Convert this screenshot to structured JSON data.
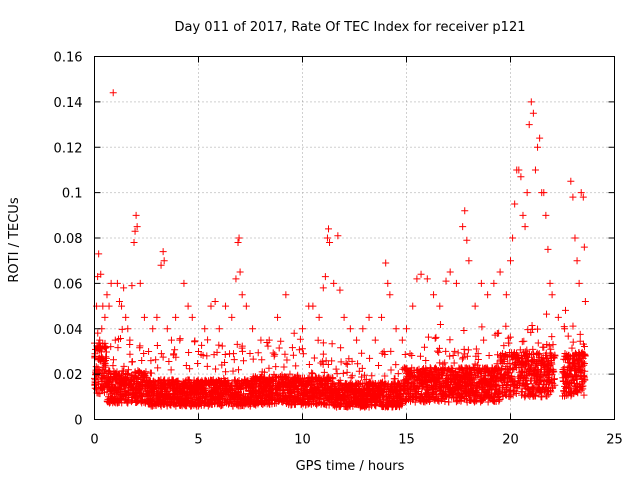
{
  "chart_data": {
    "type": "scatter",
    "title": "Day 011 of 2017, Rate Of TEC Index for receiver p121",
    "xlabel": "GPS time / hours",
    "ylabel": "ROTI / TECUs",
    "xlim": [
      0,
      25
    ],
    "ylim": [
      0,
      0.16
    ],
    "xticks": [
      "0",
      "5",
      "10",
      "15",
      "20",
      "25"
    ],
    "yticks": [
      "0",
      "0.02",
      "0.04",
      "0.06",
      "0.08",
      "0.1",
      "0.12",
      "0.14",
      "0.16"
    ],
    "xtick_values": [
      0,
      5,
      10,
      15,
      20,
      25
    ],
    "ytick_values": [
      0,
      0.02,
      0.04,
      0.06,
      0.08,
      0.1,
      0.12,
      0.14,
      0.16
    ],
    "grid": true,
    "marker": "+",
    "color": "#ff0000",
    "series": [
      {
        "values_note_free": true,
        "points": [
          [
            0.05,
            0.02
          ],
          [
            0.1,
            0.05
          ],
          [
            0.15,
            0.063
          ],
          [
            0.2,
            0.073
          ],
          [
            0.25,
            0.035
          ],
          [
            0.3,
            0.064
          ],
          [
            0.35,
            0.04
          ],
          [
            0.4,
            0.05
          ],
          [
            0.5,
            0.045
          ],
          [
            0.6,
            0.055
          ],
          [
            0.7,
            0.05
          ],
          [
            0.8,
            0.06
          ],
          [
            0.9,
            0.144
          ],
          [
            1.0,
            0.035
          ],
          [
            1.1,
            0.06
          ],
          [
            1.2,
            0.052
          ],
          [
            1.3,
            0.05
          ],
          [
            1.4,
            0.058
          ],
          [
            1.5,
            0.045
          ],
          [
            1.6,
            0.04
          ],
          [
            1.7,
            0.035
          ],
          [
            1.8,
            0.059
          ],
          [
            1.9,
            0.078
          ],
          [
            1.95,
            0.083
          ],
          [
            2.0,
            0.09
          ],
          [
            2.05,
            0.085
          ],
          [
            2.2,
            0.06
          ],
          [
            2.4,
            0.045
          ],
          [
            2.6,
            0.03
          ],
          [
            2.8,
            0.04
          ],
          [
            3.0,
            0.045
          ],
          [
            3.2,
            0.068
          ],
          [
            3.3,
            0.074
          ],
          [
            3.35,
            0.07
          ],
          [
            3.5,
            0.04
          ],
          [
            3.7,
            0.035
          ],
          [
            3.9,
            0.045
          ],
          [
            4.1,
            0.035
          ],
          [
            4.3,
            0.06
          ],
          [
            4.5,
            0.05
          ],
          [
            4.7,
            0.045
          ],
          [
            5.0,
            0.03
          ],
          [
            5.3,
            0.04
          ],
          [
            5.6,
            0.05
          ],
          [
            5.8,
            0.052
          ],
          [
            6.0,
            0.04
          ],
          [
            6.3,
            0.05
          ],
          [
            6.6,
            0.045
          ],
          [
            6.8,
            0.062
          ],
          [
            6.9,
            0.078
          ],
          [
            6.95,
            0.08
          ],
          [
            7.0,
            0.065
          ],
          [
            7.1,
            0.055
          ],
          [
            7.3,
            0.05
          ],
          [
            7.6,
            0.04
          ],
          [
            8.0,
            0.035
          ],
          [
            8.4,
            0.035
          ],
          [
            8.8,
            0.045
          ],
          [
            9.2,
            0.055
          ],
          [
            9.6,
            0.038
          ],
          [
            10.0,
            0.04
          ],
          [
            10.3,
            0.05
          ],
          [
            10.5,
            0.05
          ],
          [
            10.8,
            0.045
          ],
          [
            11.0,
            0.058
          ],
          [
            11.1,
            0.063
          ],
          [
            11.2,
            0.08
          ],
          [
            11.25,
            0.084
          ],
          [
            11.3,
            0.078
          ],
          [
            11.5,
            0.06
          ],
          [
            11.7,
            0.081
          ],
          [
            11.8,
            0.057
          ],
          [
            12.0,
            0.045
          ],
          [
            12.3,
            0.04
          ],
          [
            12.6,
            0.035
          ],
          [
            12.9,
            0.04
          ],
          [
            13.2,
            0.045
          ],
          [
            13.5,
            0.035
          ],
          [
            13.8,
            0.045
          ],
          [
            14.0,
            0.069
          ],
          [
            14.1,
            0.06
          ],
          [
            14.2,
            0.055
          ],
          [
            14.5,
            0.04
          ],
          [
            14.8,
            0.035
          ],
          [
            15.0,
            0.04
          ],
          [
            15.3,
            0.05
          ],
          [
            15.5,
            0.062
          ],
          [
            15.7,
            0.064
          ],
          [
            16.0,
            0.062
          ],
          [
            16.3,
            0.055
          ],
          [
            16.6,
            0.05
          ],
          [
            16.9,
            0.061
          ],
          [
            17.1,
            0.065
          ],
          [
            17.4,
            0.06
          ],
          [
            17.7,
            0.085
          ],
          [
            17.8,
            0.092
          ],
          [
            17.9,
            0.079
          ],
          [
            18.0,
            0.07
          ],
          [
            18.3,
            0.05
          ],
          [
            18.6,
            0.06
          ],
          [
            18.9,
            0.055
          ],
          [
            19.2,
            0.06
          ],
          [
            19.5,
            0.065
          ],
          [
            19.8,
            0.055
          ],
          [
            20.0,
            0.07
          ],
          [
            20.1,
            0.08
          ],
          [
            20.2,
            0.095
          ],
          [
            20.3,
            0.11
          ],
          [
            20.4,
            0.11
          ],
          [
            20.5,
            0.107
          ],
          [
            20.6,
            0.09
          ],
          [
            20.7,
            0.085
          ],
          [
            20.8,
            0.1
          ],
          [
            20.9,
            0.13
          ],
          [
            21.0,
            0.14
          ],
          [
            21.1,
            0.135
          ],
          [
            21.2,
            0.11
          ],
          [
            21.3,
            0.12
          ],
          [
            21.4,
            0.124
          ],
          [
            21.5,
            0.1
          ],
          [
            21.6,
            0.1
          ],
          [
            21.7,
            0.09
          ],
          [
            21.8,
            0.075
          ],
          [
            21.9,
            0.06
          ],
          [
            22.0,
            0.055
          ],
          [
            22.3,
            0.045
          ],
          [
            22.6,
            0.04
          ],
          [
            22.9,
            0.105
          ],
          [
            23.0,
            0.098
          ],
          [
            23.1,
            0.08
          ],
          [
            23.2,
            0.07
          ],
          [
            23.3,
            0.06
          ],
          [
            23.4,
            0.1
          ],
          [
            23.5,
            0.098
          ],
          [
            23.55,
            0.076
          ],
          [
            23.6,
            0.052
          ]
        ]
      }
    ]
  }
}
